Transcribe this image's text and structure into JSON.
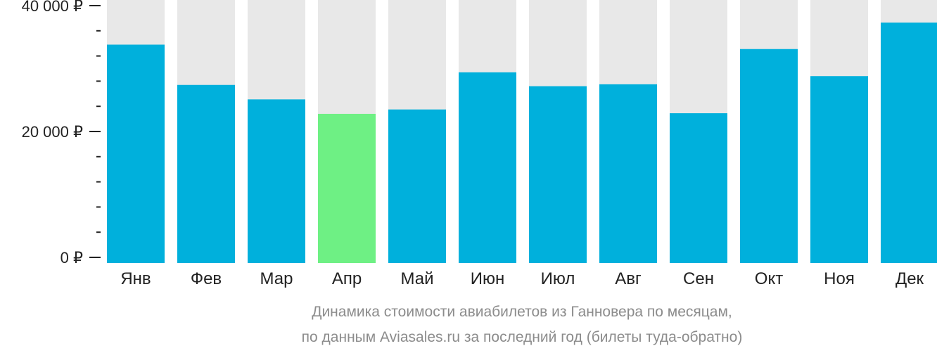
{
  "chart_data": {
    "type": "bar",
    "categories": [
      "Янв",
      "Фев",
      "Мар",
      "Апр",
      "Май",
      "Июн",
      "Июл",
      "Авг",
      "Сен",
      "Окт",
      "Ноя",
      "Дек"
    ],
    "values": [
      33800,
      27400,
      25100,
      22800,
      23500,
      29400,
      27200,
      27500,
      22900,
      33100,
      28800,
      37300
    ],
    "highlight_index": 3,
    "ylim": [
      0,
      40000
    ],
    "yticks": [
      0,
      20000,
      40000
    ],
    "ytick_labels": [
      "0 ₽",
      "20 000 ₽",
      "40 000 ₽"
    ],
    "minor_ticks_per_interval": 4,
    "grid": false,
    "xlabel": "",
    "ylabel": "",
    "colors": {
      "bar": "#00b0dc",
      "highlight": "#6ef084",
      "background": "#e8e8e8",
      "axis": "#222222",
      "caption": "#8c8c8c"
    }
  },
  "caption": {
    "line1": "Динамика стоимости авиабилетов из Ганновера по месяцам,",
    "line2": "по данным Aviasales.ru за последний год (билеты туда-обратно)"
  }
}
